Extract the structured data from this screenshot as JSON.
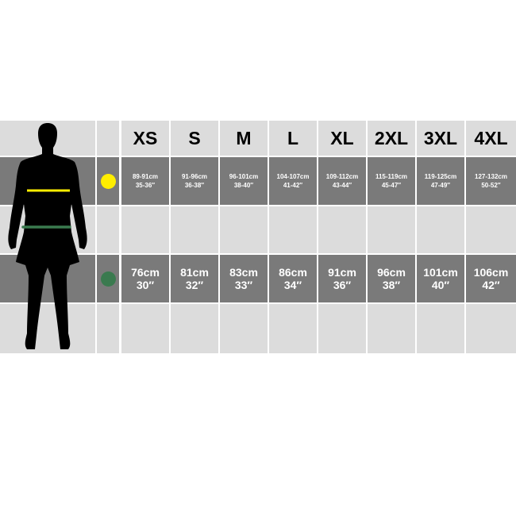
{
  "sizes": [
    "XS",
    "S",
    "M",
    "L",
    "XL",
    "2XL",
    "3XL",
    "4XL"
  ],
  "chest": {
    "marker_color": "#ffee00",
    "values": [
      {
        "cm": "89-91cm",
        "in": "35-36″"
      },
      {
        "cm": "91-96cm",
        "in": "36-38″"
      },
      {
        "cm": "96-101cm",
        "in": "38-40″"
      },
      {
        "cm": "104-107cm",
        "in": "41-42″"
      },
      {
        "cm": "109-112cm",
        "in": "43-44″"
      },
      {
        "cm": "115-119cm",
        "in": "45-47″"
      },
      {
        "cm": "119-125cm",
        "in": "47-49″"
      },
      {
        "cm": "127-132cm",
        "in": "50-52″"
      }
    ]
  },
  "waist": {
    "marker_color": "#3a7a4f",
    "values": [
      {
        "cm": "76cm",
        "in": "30″"
      },
      {
        "cm": "81cm",
        "in": "32″"
      },
      {
        "cm": "83cm",
        "in": "33″"
      },
      {
        "cm": "86cm",
        "in": "34″"
      },
      {
        "cm": "91cm",
        "in": "36″"
      },
      {
        "cm": "96cm",
        "in": "38″"
      },
      {
        "cm": "101cm",
        "in": "40″"
      },
      {
        "cm": "106cm",
        "in": "42″"
      }
    ]
  },
  "colors": {
    "row_light": "#dcdcdc",
    "row_dark": "#7a7a7a"
  }
}
